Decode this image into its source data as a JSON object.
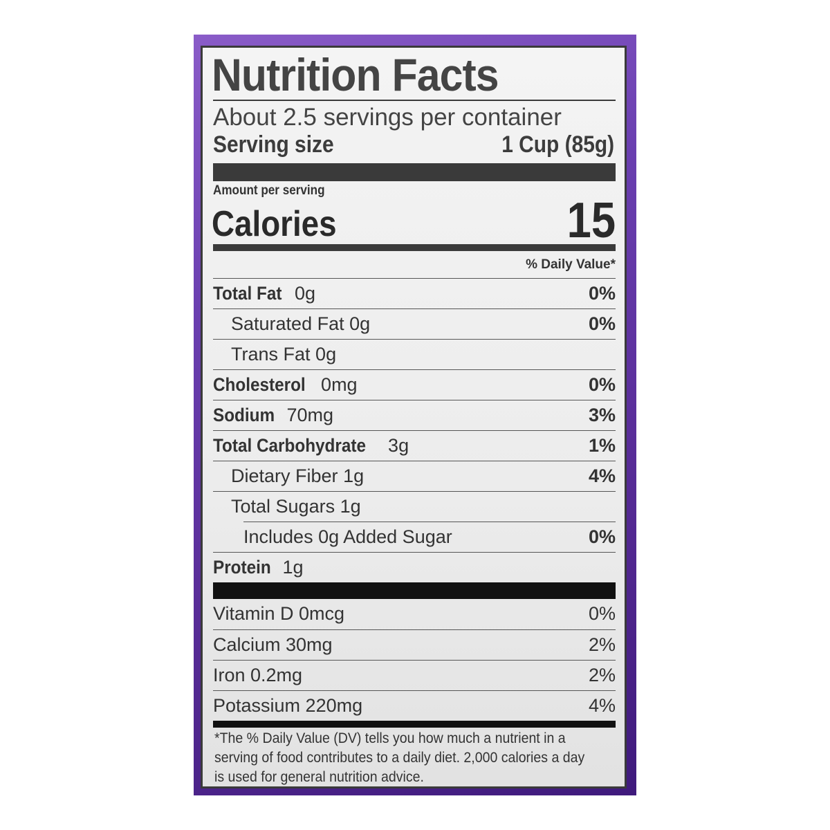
{
  "colors": {
    "background": "#6a3fb0",
    "label": "#efefef",
    "text": "#3c3c3c"
  },
  "title": "Nutrition Facts",
  "servings": "About 2.5 servings per container",
  "serving_size_label": "Serving size",
  "serving_size_value": "1 Cup (85g)",
  "amount_per_serving": "Amount per serving",
  "calories_label": "Calories",
  "calories_value": "15",
  "dv_header": "% Daily Value*",
  "nutrients": [
    {
      "name": "Total Fat",
      "amount": "0g",
      "dv": "0%"
    },
    {
      "name": "Saturated Fat",
      "amount": "0g",
      "dv": "0%"
    },
    {
      "name": "Trans Fat",
      "amount": "0g",
      "dv": ""
    },
    {
      "name": "Cholesterol",
      "amount": "0mg",
      "dv": "0%"
    },
    {
      "name": "Sodium",
      "amount": "70mg",
      "dv": "3%"
    },
    {
      "name": "Total Carbohydrate",
      "amount": "3g",
      "dv": "1%"
    },
    {
      "name": "Dietary Fiber",
      "amount": "1g",
      "dv": "4%"
    },
    {
      "name": "Total Sugars",
      "amount": "1g",
      "dv": ""
    },
    {
      "name": "Includes 0g Added Sugar",
      "amount": "",
      "dv": "0%"
    },
    {
      "name": "Protein",
      "amount": "1g",
      "dv": ""
    }
  ],
  "vitamins": [
    {
      "name": "Vitamin D 0mcg",
      "dv": "0%"
    },
    {
      "name": "Calcium 30mg",
      "dv": "2%"
    },
    {
      "name": "Iron 0.2mg",
      "dv": "2%"
    },
    {
      "name": "Potassium 220mg",
      "dv": "4%"
    }
  ],
  "footnote": "*The % Daily Value (DV) tells you how much a nutrient in a serving of food contributes to a daily diet. 2,000 calories a day is used for general nutrition advice."
}
